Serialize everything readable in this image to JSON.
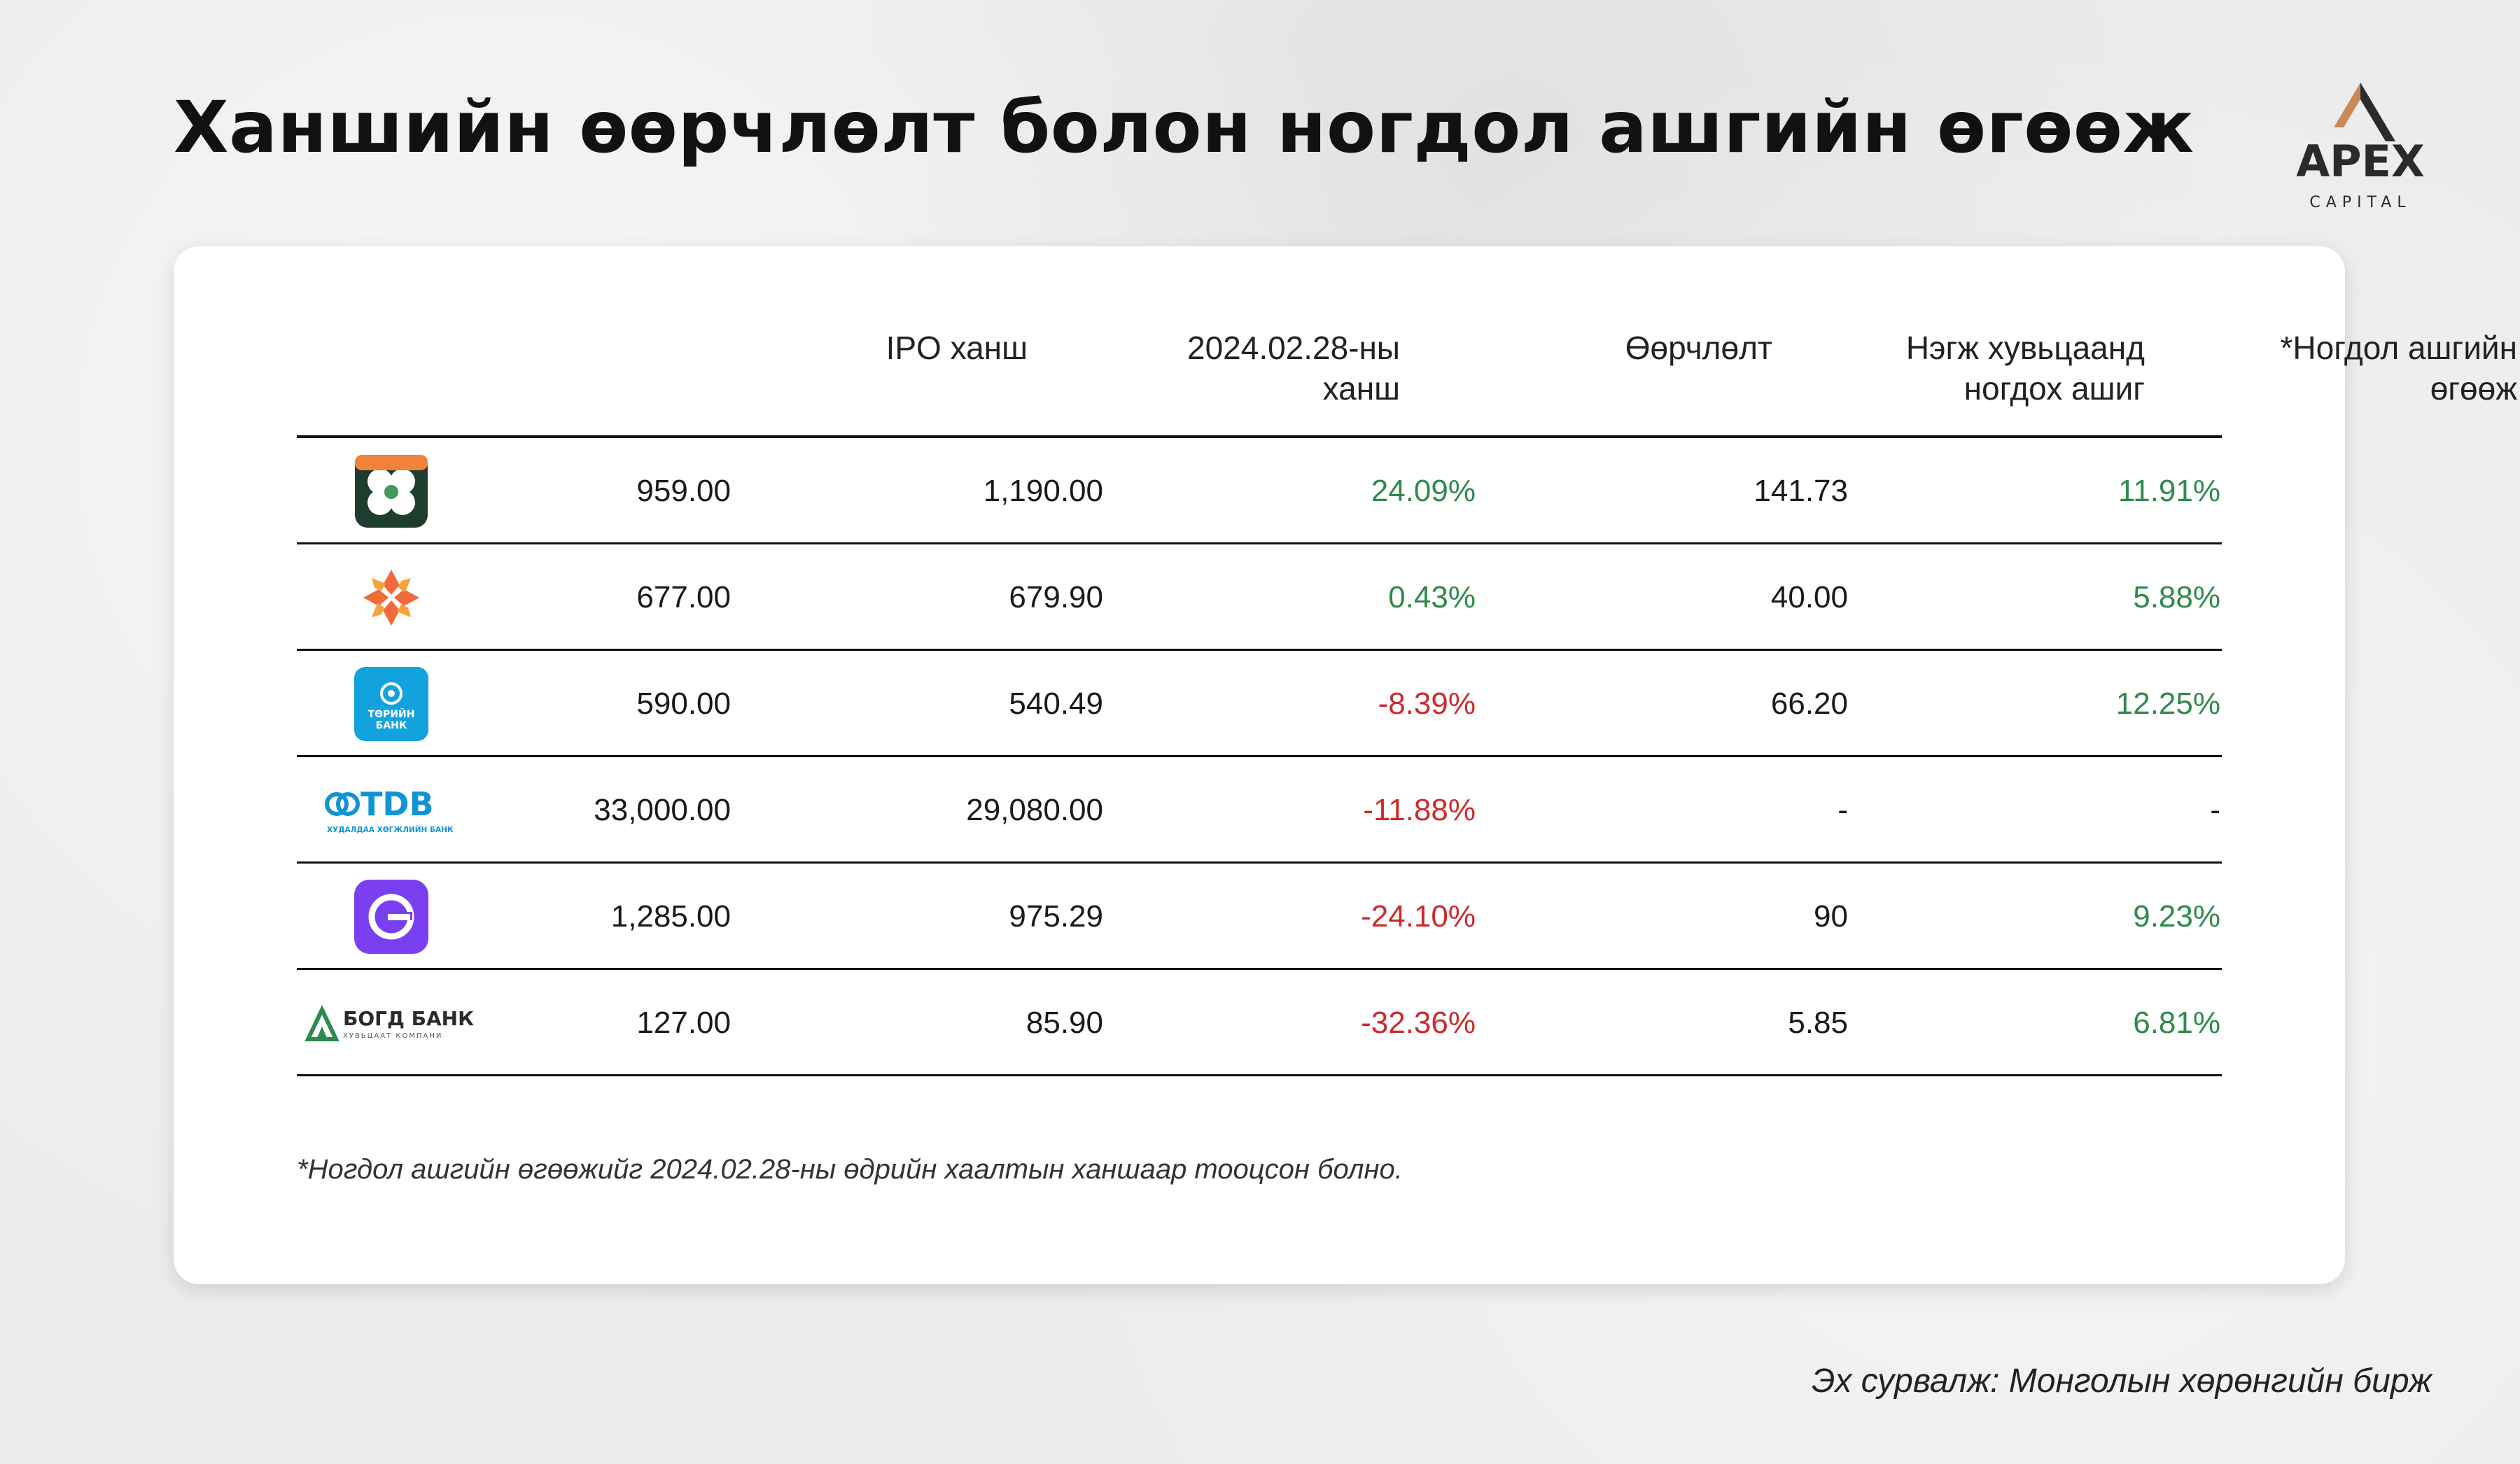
{
  "title": "Ханшийн өөрчлөлт болон ногдол ашгийн өгөөж",
  "brand": {
    "logo_text": "APEX",
    "logo_subtext": "CAPITAL",
    "accent_color": "#c98a5a"
  },
  "chart_data": {
    "type": "table",
    "columns": [
      "",
      "IPO ханш",
      "2024.02.28-ны ханш",
      "Өөрчлөлт",
      "Нэгж хувьцаанд ногдох ашиг",
      "*Ногдол ашгийн өгөөж"
    ],
    "header_lines": {
      "ipo": [
        "IPO ханш"
      ],
      "price": [
        "2024.02.28-ны",
        "ханш"
      ],
      "change": [
        "Өөрчлөлт"
      ],
      "eps": [
        "Нэгж хувьцаанд",
        "ногдох ашиг"
      ],
      "yield": [
        "*Ногдол ашгийн",
        "өгөөж"
      ]
    },
    "rows": [
      {
        "company_icon": "clover-bank-logo-icon",
        "ipo": "959.00",
        "price": "1,190.00",
        "change": "24.09%",
        "change_dir": "pos",
        "eps": "141.73",
        "yield": "11.91%",
        "yield_dir": "pos"
      },
      {
        "company_icon": "orange-knot-logo-icon",
        "ipo": "677.00",
        "price": "679.90",
        "change": "0.43%",
        "change_dir": "pos",
        "eps": "40.00",
        "yield": "5.88%",
        "yield_dir": "pos"
      },
      {
        "company_icon": "turiin-bank-logo-icon",
        "logo_text": [
          "ТӨРИЙН",
          "БАНК"
        ],
        "ipo": "590.00",
        "price": "540.49",
        "change": "-8.39%",
        "change_dir": "neg",
        "eps": "66.20",
        "yield": "12.25%",
        "yield_dir": "pos"
      },
      {
        "company_icon": "tdb-logo-icon",
        "logo_text": [
          "TDB",
          "ХУДАЛДАА ХӨГЖЛИЙН БАНК"
        ],
        "ipo": "33,000.00",
        "price": "29,080.00",
        "change": "-11.88%",
        "change_dir": "neg",
        "eps": "-",
        "yield": "-",
        "yield_dir": "neutral"
      },
      {
        "company_icon": "purple-g-logo-icon",
        "ipo": "1,285.00",
        "price": "975.29",
        "change": "-24.10%",
        "change_dir": "neg",
        "eps": "90",
        "yield": "9.23%",
        "yield_dir": "pos"
      },
      {
        "company_icon": "bogd-bank-logo-icon",
        "logo_text": [
          "БОГД БАНК",
          "ХУВЬЦААТ КОМПАНИ"
        ],
        "ipo": "127.00",
        "price": "85.90",
        "change": "-32.36%",
        "change_dir": "neg",
        "eps": "5.85",
        "yield": "6.81%",
        "yield_dir": "pos"
      }
    ]
  },
  "colors": {
    "positive": "#2f8a4b",
    "negative": "#cc2b2b"
  },
  "footnote": "*Ногдол ашгийн өгөөжийг 2024.02.28-ны өдрийн хаалтын ханшаар тооцсон болно.",
  "source": "Эх сурвалж: Монголын хөрөнгийн бирж"
}
